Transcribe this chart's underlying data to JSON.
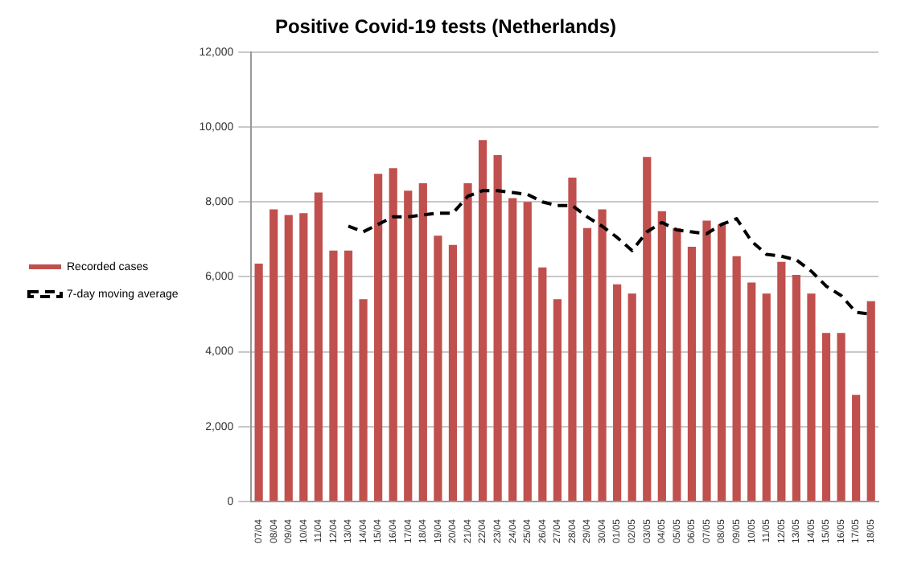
{
  "chart_data": {
    "type": "bar",
    "title": "Positive Covid-19 tests (Netherlands)",
    "categories": [
      "07/04",
      "08/04",
      "09/04",
      "10/04",
      "11/04",
      "12/04",
      "13/04",
      "14/04",
      "15/04",
      "16/04",
      "17/04",
      "18/04",
      "19/04",
      "20/04",
      "21/04",
      "22/04",
      "23/04",
      "24/04",
      "25/04",
      "26/04",
      "27/04",
      "28/04",
      "29/04",
      "30/04",
      "01/05",
      "02/05",
      "03/05",
      "04/05",
      "05/05",
      "06/05",
      "07/05",
      "08/05",
      "09/05",
      "10/05",
      "11/05",
      "12/05",
      "13/05",
      "14/05",
      "15/05",
      "16/05",
      "17/05",
      "18/05"
    ],
    "series": [
      {
        "name": "Recorded cases",
        "color": "#c0504d",
        "values": [
          6350,
          7800,
          7650,
          7700,
          8250,
          6700,
          6700,
          5400,
          8750,
          8900,
          8300,
          8500,
          7100,
          6850,
          8500,
          9650,
          9250,
          8100,
          8000,
          6250,
          5400,
          8650,
          7300,
          7800,
          5800,
          5550,
          9200,
          7750,
          7300,
          6800,
          7500,
          7400,
          6550,
          5850,
          5550,
          6400,
          6050,
          5550,
          4500,
          4500,
          2850,
          5350
        ]
      },
      {
        "name": "7-day moving average",
        "type": "line",
        "color": "#000000",
        "line_style": "dashed",
        "marker": "none",
        "values": [
          null,
          null,
          null,
          null,
          null,
          null,
          7350,
          7200,
          7400,
          7600,
          7600,
          7650,
          7700,
          7700,
          8150,
          8300,
          8300,
          8250,
          8200,
          8000,
          7900,
          7900,
          7600,
          7350,
          7050,
          6700,
          7200,
          7450,
          7250,
          7200,
          7150,
          7400,
          7550,
          6950,
          6600,
          6550,
          6450,
          6150,
          5750,
          5500,
          5050,
          5000
        ]
      }
    ],
    "ylim": [
      0,
      12000
    ],
    "yticks": [
      {
        "value": 0,
        "label": "0"
      },
      {
        "value": 2000,
        "label": "2,000"
      },
      {
        "value": 4000,
        "label": "4,000"
      },
      {
        "value": 6000,
        "label": "6,000"
      },
      {
        "value": 8000,
        "label": "8,000"
      },
      {
        "value": 10000,
        "label": "10,000"
      },
      {
        "value": 12000,
        "label": "12,000"
      }
    ],
    "grid": "y",
    "legend": "left"
  }
}
